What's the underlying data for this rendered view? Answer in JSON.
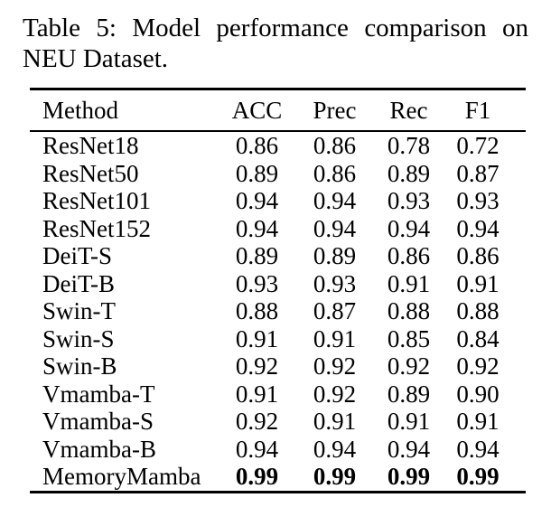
{
  "caption": {
    "line1": "Table 5: Model performance comparison on",
    "line2": "NEU Dataset."
  },
  "chart_data": {
    "type": "table",
    "title": "Table 5: Model performance comparison on NEU Dataset.",
    "columns": [
      "Method",
      "ACC",
      "Prec",
      "Rec",
      "F1"
    ],
    "rows": [
      {
        "method": "ResNet18",
        "values": [
          "0.86",
          "0.86",
          "0.78",
          "0.72"
        ],
        "bold": false
      },
      {
        "method": "ResNet50",
        "values": [
          "0.89",
          "0.86",
          "0.89",
          "0.87"
        ],
        "bold": false
      },
      {
        "method": "ResNet101",
        "values": [
          "0.94",
          "0.94",
          "0.93",
          "0.93"
        ],
        "bold": false
      },
      {
        "method": "ResNet152",
        "values": [
          "0.94",
          "0.94",
          "0.94",
          "0.94"
        ],
        "bold": false
      },
      {
        "method": "DeiT-S",
        "values": [
          "0.89",
          "0.89",
          "0.86",
          "0.86"
        ],
        "bold": false
      },
      {
        "method": "DeiT-B",
        "values": [
          "0.93",
          "0.93",
          "0.91",
          "0.91"
        ],
        "bold": false
      },
      {
        "method": "Swin-T",
        "values": [
          "0.88",
          "0.87",
          "0.88",
          "0.88"
        ],
        "bold": false
      },
      {
        "method": "Swin-S",
        "values": [
          "0.91",
          "0.91",
          "0.85",
          "0.84"
        ],
        "bold": false
      },
      {
        "method": "Swin-B",
        "values": [
          "0.92",
          "0.92",
          "0.92",
          "0.92"
        ],
        "bold": false
      },
      {
        "method": "Vmamba-T",
        "values": [
          "0.91",
          "0.92",
          "0.89",
          "0.90"
        ],
        "bold": false
      },
      {
        "method": "Vmamba-S",
        "values": [
          "0.92",
          "0.91",
          "0.91",
          "0.91"
        ],
        "bold": false
      },
      {
        "method": "Vmamba-B",
        "values": [
          "0.94",
          "0.94",
          "0.94",
          "0.94"
        ],
        "bold": false
      },
      {
        "method": "MemoryMamba",
        "values": [
          "0.99",
          "0.99",
          "0.99",
          "0.99"
        ],
        "bold": true
      }
    ]
  },
  "colors": {
    "text": "#000000",
    "background": "#ffffff",
    "rule": "#000000"
  }
}
